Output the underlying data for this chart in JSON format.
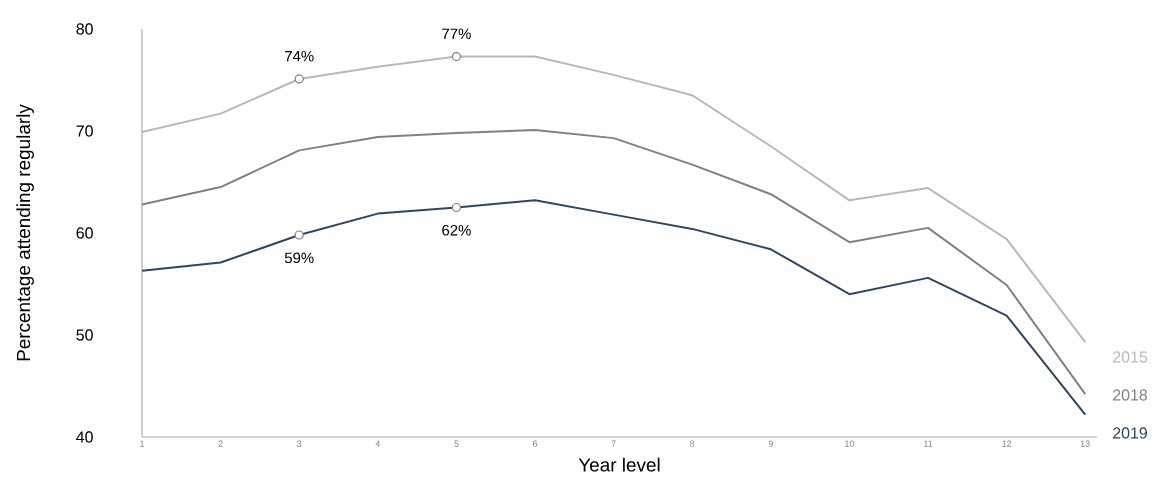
{
  "chart_data": {
    "type": "line",
    "xlabel": "Year level",
    "ylabel": "Percentage attending regularly",
    "categories": [
      "1",
      "2",
      "3",
      "4",
      "5",
      "6",
      "7",
      "8",
      "9",
      "10",
      "11",
      "12",
      "13"
    ],
    "series": [
      {
        "name": "2015",
        "color": "#b8b8b8",
        "values": [
          69.9,
          71.7,
          75.1,
          76.3,
          77.3,
          77.3,
          75.5,
          73.5,
          68.5,
          63.2,
          64.4,
          59.4,
          49.3
        ]
      },
      {
        "name": "2018",
        "color": "#808080",
        "values": [
          62.8,
          64.5,
          68.1,
          69.4,
          69.8,
          70.1,
          69.3,
          66.7,
          63.8,
          59.1,
          60.5,
          54.9,
          44.2
        ]
      },
      {
        "name": "2019",
        "color": "#2f4660",
        "values": [
          56.3,
          57.1,
          59.8,
          61.9,
          62.5,
          63.2,
          61.8,
          60.4,
          58.4,
          54.0,
          55.6,
          51.9,
          42.2
        ]
      }
    ],
    "ylim": [
      40,
      80
    ],
    "yticks": [
      40,
      50,
      60,
      70,
      80
    ],
    "legend": "right",
    "annotations": [
      {
        "text": "74%",
        "x": "3",
        "y": 75.1
      },
      {
        "text": "77%",
        "x": "5",
        "y": 77.3
      },
      {
        "text": "59%",
        "x": "3",
        "y": 59.8
      },
      {
        "text": "62%",
        "x": "5",
        "y": 62.5
      }
    ]
  }
}
